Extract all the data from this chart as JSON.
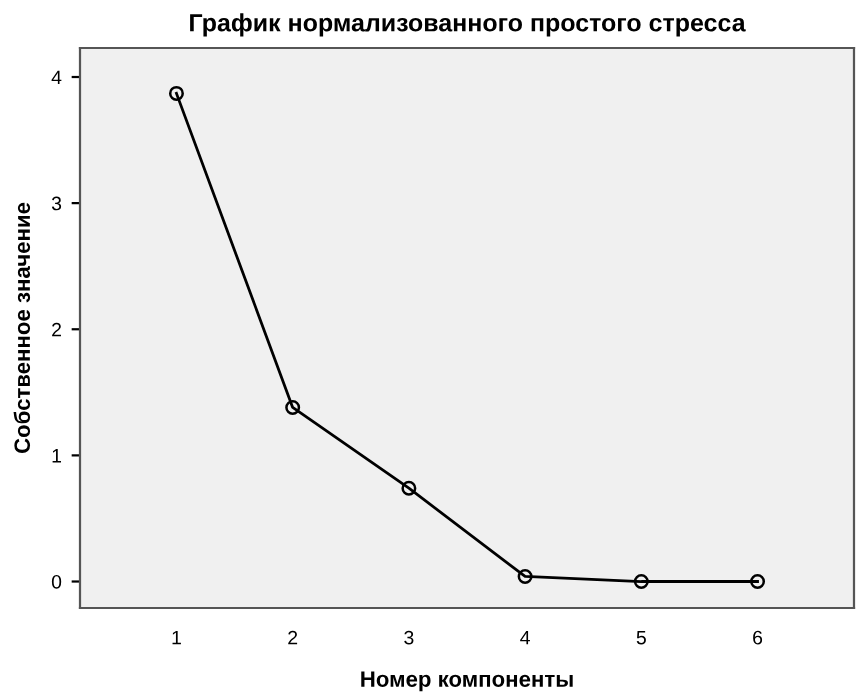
{
  "chart_data": {
    "type": "line",
    "title": "График нормализованного простого стресса",
    "xlabel": "Номер компоненты",
    "ylabel": "Собственное значение",
    "x": [
      1,
      2,
      3,
      4,
      5,
      6
    ],
    "series": [
      {
        "color": "#000000",
        "values": [
          3.87,
          1.38,
          0.74,
          0.04,
          0.0,
          0.0
        ]
      }
    ],
    "xlim": [
      0.17,
      6.83
    ],
    "xticks": [
      1,
      2,
      3,
      4,
      5,
      6
    ],
    "ylim": [
      -0.21,
      4.23
    ],
    "yticks": [
      0,
      1,
      2,
      3,
      4
    ],
    "grid": false,
    "legend": false,
    "marker": "circle",
    "line_style": "solid"
  }
}
